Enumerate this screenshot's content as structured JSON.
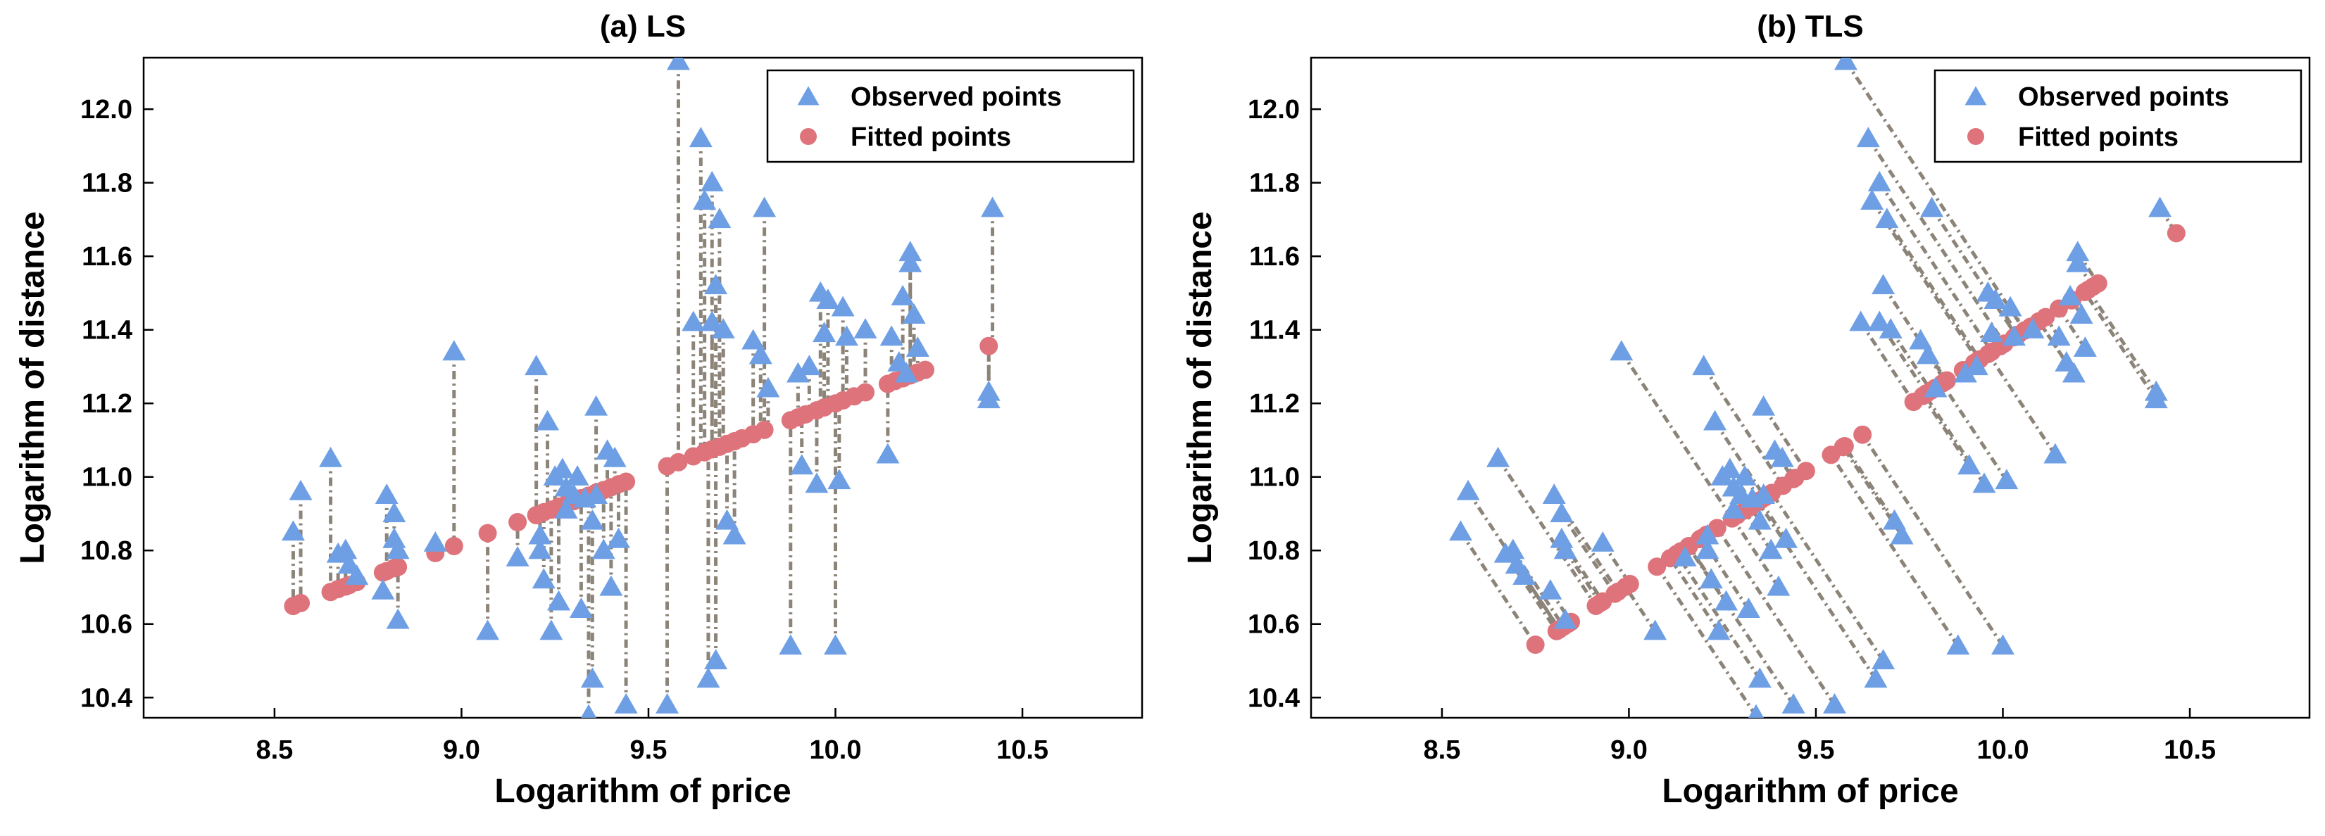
{
  "chart_data": [
    {
      "type": "scatter",
      "title": "(a) LS",
      "xlabel": "Logarithm of price",
      "ylabel": "Logarithm of distance",
      "xlim": [
        8.15,
        10.82
      ],
      "ylim": [
        10.345,
        12.14
      ],
      "xticks": [
        "8.5",
        "9.0",
        "9.5",
        "10.0",
        "10.5"
      ],
      "yticks": [
        "10.4",
        "10.6",
        "10.8",
        "11.0",
        "11.2",
        "11.4",
        "11.6",
        "11.8",
        "12.0"
      ],
      "legend": {
        "position": "top-right",
        "entries": [
          "Observed points",
          "Fitted points"
        ]
      },
      "fit_line": {
        "slope": 0.38,
        "intercept": 7.4
      },
      "residual_direction": "vertical",
      "observed_points": {
        "x": [
          8.55,
          8.57,
          8.65,
          8.67,
          8.69,
          8.7,
          8.72,
          8.79,
          8.8,
          8.82,
          8.82,
          8.83,
          8.83,
          8.93,
          8.98,
          9.07,
          9.15,
          9.2,
          9.21,
          9.21,
          9.22,
          9.23,
          9.24,
          9.25,
          9.26,
          9.27,
          9.28,
          9.28,
          9.3,
          9.31,
          9.32,
          9.33,
          9.34,
          9.35,
          9.35,
          9.36,
          9.36,
          9.38,
          9.39,
          9.4,
          9.41,
          9.42,
          9.44,
          9.55,
          9.58,
          9.62,
          9.64,
          9.65,
          9.66,
          9.67,
          9.67,
          9.68,
          9.68,
          9.69,
          9.7,
          9.71,
          9.73,
          9.78,
          9.8,
          9.81,
          9.82,
          9.88,
          9.9,
          9.91,
          9.93,
          9.95,
          9.96,
          9.97,
          9.98,
          10.0,
          10.01,
          10.02,
          10.03,
          10.08,
          10.14,
          10.15,
          10.17,
          10.18,
          10.19,
          10.2,
          10.2,
          10.21,
          10.22,
          10.41,
          10.41,
          10.42
        ],
        "y": [
          10.85,
          10.96,
          11.05,
          10.79,
          10.8,
          10.76,
          10.73,
          10.69,
          10.95,
          10.9,
          10.83,
          10.8,
          10.61,
          10.82,
          11.34,
          10.58,
          10.78,
          11.3,
          10.84,
          10.8,
          10.72,
          11.15,
          10.58,
          11.0,
          10.66,
          11.02,
          10.97,
          10.91,
          10.95,
          11.0,
          10.64,
          10.94,
          10.35,
          10.45,
          10.88,
          11.19,
          10.95,
          10.8,
          11.07,
          10.7,
          11.05,
          10.83,
          10.38,
          10.38,
          12.13,
          11.42,
          11.92,
          11.75,
          10.45,
          11.8,
          11.42,
          11.52,
          10.5,
          11.7,
          11.4,
          10.88,
          10.84,
          11.37,
          11.33,
          11.73,
          11.24,
          10.54,
          11.28,
          11.03,
          11.3,
          10.98,
          11.5,
          11.39,
          11.48,
          10.54,
          10.99,
          11.46,
          11.38,
          11.4,
          11.06,
          11.38,
          11.31,
          11.49,
          11.28,
          11.58,
          11.61,
          11.44,
          11.35,
          11.21,
          11.23,
          11.73
        ]
      },
      "fitted_points": {
        "x": [
          8.55,
          8.57,
          8.65,
          8.67,
          8.69,
          8.7,
          8.72,
          8.79,
          8.8,
          8.82,
          8.83,
          8.93,
          8.98,
          9.07,
          9.15,
          9.2,
          9.22,
          9.24,
          9.26,
          9.28,
          9.3,
          9.32,
          9.34,
          9.36,
          9.38,
          9.4,
          9.42,
          9.44,
          9.55,
          9.58,
          9.62,
          9.65,
          9.67,
          9.69,
          9.71,
          9.73,
          9.75,
          9.78,
          9.81,
          9.88,
          9.9,
          9.92,
          9.95,
          9.97,
          10.0,
          10.02,
          10.05,
          10.08,
          10.14,
          10.16,
          10.18,
          10.2,
          10.22,
          10.24,
          10.41
        ],
        "y": [
          10.649,
          10.657,
          10.687,
          10.695,
          10.702,
          10.706,
          10.714,
          10.74,
          10.744,
          10.752,
          10.755,
          10.793,
          10.812,
          10.847,
          10.877,
          10.896,
          10.904,
          10.911,
          10.919,
          10.926,
          10.934,
          10.942,
          10.949,
          10.957,
          10.964,
          10.972,
          10.98,
          10.987,
          11.029,
          11.04,
          11.056,
          11.067,
          11.075,
          11.082,
          11.09,
          11.097,
          11.105,
          11.116,
          11.128,
          11.154,
          11.162,
          11.17,
          11.181,
          11.189,
          11.2,
          11.208,
          11.219,
          11.23,
          11.253,
          11.261,
          11.268,
          11.276,
          11.284,
          11.291,
          11.356
        ]
      }
    },
    {
      "type": "scatter",
      "title": "(b) TLS",
      "xlabel": "Logarithm of price",
      "ylabel": "Logarithm of distance",
      "xlim": [
        8.15,
        10.82
      ],
      "ylim": [
        10.345,
        12.14
      ],
      "xticks": [
        "8.5",
        "9.0",
        "9.5",
        "10.0",
        "10.5"
      ],
      "yticks": [
        "10.4",
        "10.6",
        "10.8",
        "11.0",
        "11.2",
        "11.4",
        "11.6",
        "11.8",
        "12.0"
      ],
      "legend": {
        "position": "top-right",
        "entries": [
          "Observed points",
          "Fitted points"
        ]
      },
      "fit_line": {
        "slope": 0.653,
        "intercept": 4.83
      },
      "residual_direction": "orthogonal",
      "observed_points": "same as (a)",
      "fitted_points": "orthogonal projections of observed points onto fit line"
    }
  ]
}
